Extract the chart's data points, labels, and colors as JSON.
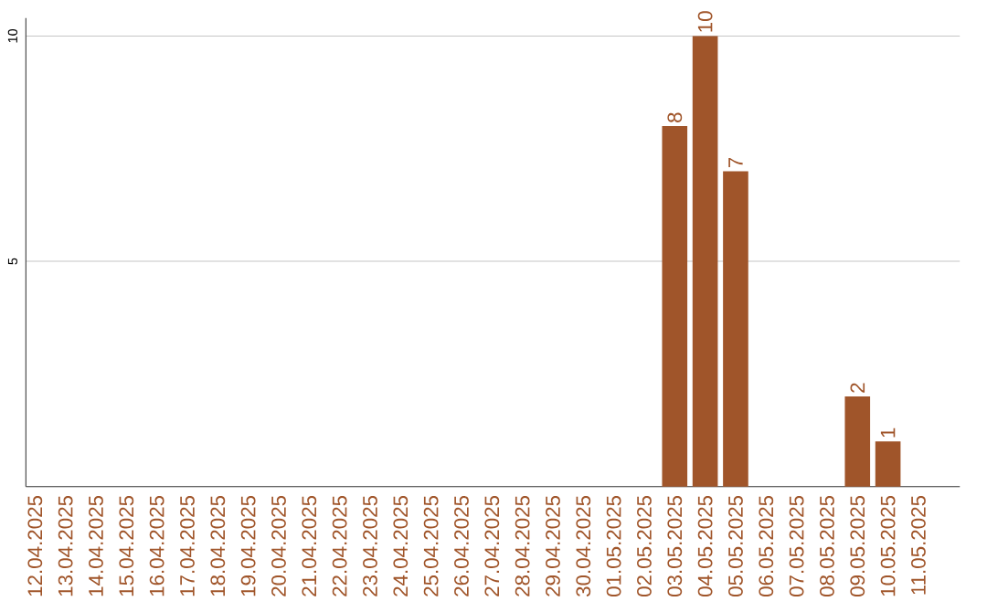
{
  "chart_data": {
    "type": "bar",
    "categories": [
      "12.04.2025",
      "13.04.2025",
      "14.04.2025",
      "15.04.2025",
      "16.04.2025",
      "17.04.2025",
      "18.04.2025",
      "19.04.2025",
      "20.04.2025",
      "21.04.2025",
      "22.04.2025",
      "23.04.2025",
      "24.04.2025",
      "25.04.2025",
      "26.04.2025",
      "27.04.2025",
      "28.04.2025",
      "29.04.2025",
      "30.04.2025",
      "01.05.2025",
      "02.05.2025",
      "03.05.2025",
      "04.05.2025",
      "05.05.2025",
      "06.05.2025",
      "07.05.2025",
      "08.05.2025",
      "09.05.2025",
      "10.05.2025",
      "11.05.2025"
    ],
    "values": [
      0,
      0,
      0,
      0,
      0,
      0,
      0,
      0,
      0,
      0,
      0,
      0,
      0,
      0,
      0,
      0,
      0,
      0,
      0,
      0,
      0,
      8,
      10,
      7,
      0,
      0,
      0,
      2,
      1,
      0
    ],
    "value_labels": [
      null,
      null,
      null,
      null,
      null,
      null,
      null,
      null,
      null,
      null,
      null,
      null,
      null,
      null,
      null,
      null,
      null,
      null,
      null,
      null,
      null,
      "8",
      "10",
      "7",
      null,
      null,
      null,
      "2",
      "1",
      null
    ],
    "color": "#a0552a",
    "ylim": [
      0,
      10.4
    ],
    "yticks": [
      5,
      10
    ],
    "grid": "y"
  }
}
